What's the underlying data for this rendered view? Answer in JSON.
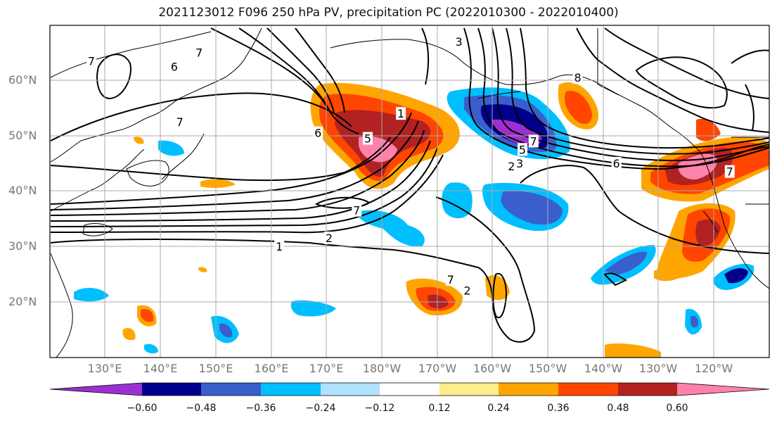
{
  "title": "2021123012 F096 250 hPa PV, precipitation PC (2022010300 - 2022010400)",
  "lat_labels": [
    "60°N",
    "50°N",
    "40°N",
    "30°N",
    "20°N"
  ],
  "lon_labels": [
    "130°E",
    "140°E",
    "150°E",
    "160°E",
    "170°E",
    "180°W",
    "170°W",
    "160°W",
    "150°W",
    "140°W",
    "130°W",
    "120°W"
  ],
  "colorbar": {
    "ticks": [
      "−0.60",
      "−0.48",
      "−0.36",
      "−0.24",
      "−0.12",
      "0.12",
      "0.24",
      "0.36",
      "0.48",
      "0.60"
    ],
    "colors": [
      "#9b30d0",
      "#00008b",
      "#3a5fcd",
      "#00bfff",
      "#b0e2ff",
      "#ffffff",
      "#ffec8b",
      "#ffa500",
      "#ff4500",
      "#b22222",
      "#ff82ab"
    ]
  },
  "contour_labels": [
    {
      "text": "6",
      "lon": 142.5,
      "lat": 62.5
    },
    {
      "text": "7",
      "lon": 127.5,
      "lat": 63.5
    },
    {
      "text": "7",
      "lon": 147,
      "lat": 65.0
    },
    {
      "text": "7",
      "lon": 143.5,
      "lat": 52.5
    },
    {
      "text": "6",
      "lon": 168.5,
      "lat": 50.5
    },
    {
      "text": "1",
      "lon": 183.5,
      "lat": 54.0
    },
    {
      "text": "5",
      "lon": 177.5,
      "lat": 49.5
    },
    {
      "text": "7",
      "lon": 175.5,
      "lat": 36.5
    },
    {
      "text": "1",
      "lon": 161.5,
      "lat": 30.0
    },
    {
      "text": "2",
      "lon": 170.5,
      "lat": 31.5
    },
    {
      "text": "3",
      "lon": 194,
      "lat": 67.0
    },
    {
      "text": "8",
      "lon": 215.5,
      "lat": 60.5
    },
    {
      "text": "5",
      "lon": 205.5,
      "lat": 47.5
    },
    {
      "text": "7",
      "lon": 207.5,
      "lat": 49.0
    },
    {
      "text": "2",
      "lon": 203.5,
      "lat": 44.5
    },
    {
      "text": "3",
      "lon": 205,
      "lat": 45.0
    },
    {
      "text": "6",
      "lon": 222.5,
      "lat": 45.0
    },
    {
      "text": "7",
      "lon": 243,
      "lat": 43.5
    },
    {
      "text": "7",
      "lon": 192.5,
      "lat": 24.0
    },
    {
      "text": "2",
      "lon": 195.5,
      "lat": 22.0
    }
  ]
}
